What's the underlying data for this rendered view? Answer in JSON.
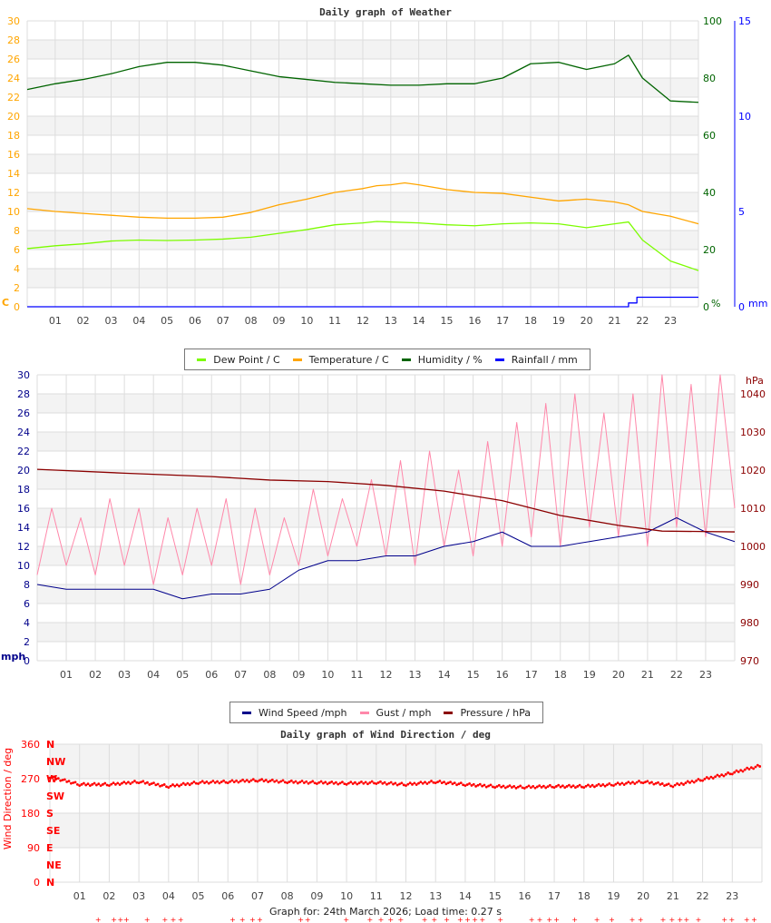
{
  "chart_data": [
    {
      "type": "line",
      "title": "Daily graph of Weather",
      "x_ticks": [
        "01",
        "02",
        "03",
        "04",
        "05",
        "06",
        "07",
        "08",
        "09",
        "10",
        "11",
        "12",
        "13",
        "14",
        "15",
        "16",
        "17",
        "18",
        "19",
        "20",
        "21",
        "22",
        "23"
      ],
      "xlim": [
        0,
        24
      ],
      "grid": true,
      "axes": {
        "left": {
          "unit": "C",
          "range": [
            0,
            30
          ],
          "ticks": [
            0,
            2,
            4,
            6,
            8,
            10,
            12,
            14,
            16,
            18,
            20,
            22,
            24,
            26,
            28,
            30
          ],
          "color": "#ffa500"
        },
        "right": {
          "unit": "%",
          "range": [
            0,
            100
          ],
          "ticks": [
            0,
            20,
            40,
            60,
            80,
            100
          ],
          "color": "#006400"
        },
        "rain": {
          "unit": "mm",
          "range": [
            0,
            15
          ],
          "ticks": [
            0,
            5,
            10,
            15
          ],
          "color": "#0000ff"
        }
      },
      "legend_position": "bottom",
      "series": [
        {
          "name": "Dew Point / C",
          "color": "#7cfc00",
          "axis": "left",
          "points": [
            [
              0,
              6.1
            ],
            [
              1,
              6.4
            ],
            [
              2,
              6.6
            ],
            [
              3,
              6.9
            ],
            [
              4,
              7.0
            ],
            [
              5,
              6.95
            ],
            [
              6,
              7.0
            ],
            [
              7,
              7.1
            ],
            [
              8,
              7.3
            ],
            [
              9,
              7.7
            ],
            [
              10,
              8.1
            ],
            [
              11,
              8.6
            ],
            [
              12,
              8.8
            ],
            [
              12.5,
              8.95
            ],
            [
              13,
              8.9
            ],
            [
              14,
              8.8
            ],
            [
              15,
              8.6
            ],
            [
              16,
              8.5
            ],
            [
              17,
              8.7
            ],
            [
              18,
              8.8
            ],
            [
              19,
              8.7
            ],
            [
              20,
              8.3
            ],
            [
              21,
              8.7
            ],
            [
              21.5,
              8.9
            ],
            [
              22,
              7.0
            ],
            [
              23,
              4.8
            ],
            [
              24,
              3.8
            ]
          ]
        },
        {
          "name": "Temperature / C",
          "color": "#ffa500",
          "axis": "left",
          "points": [
            [
              0,
              10.3
            ],
            [
              1,
              10.0
            ],
            [
              2,
              9.8
            ],
            [
              3,
              9.6
            ],
            [
              4,
              9.4
            ],
            [
              5,
              9.3
            ],
            [
              6,
              9.3
            ],
            [
              7,
              9.4
            ],
            [
              8,
              9.9
            ],
            [
              9,
              10.7
            ],
            [
              10,
              11.3
            ],
            [
              11,
              12.0
            ],
            [
              12,
              12.4
            ],
            [
              12.5,
              12.7
            ],
            [
              13,
              12.8
            ],
            [
              13.5,
              13.0
            ],
            [
              14,
              12.8
            ],
            [
              15,
              12.3
            ],
            [
              16,
              12.0
            ],
            [
              17,
              11.9
            ],
            [
              18,
              11.5
            ],
            [
              19,
              11.1
            ],
            [
              20,
              11.3
            ],
            [
              21,
              11.0
            ],
            [
              21.5,
              10.7
            ],
            [
              22,
              10.0
            ],
            [
              23,
              9.5
            ],
            [
              24,
              8.7
            ]
          ]
        },
        {
          "name": "Humidity / %",
          "color": "#006400",
          "axis": "right",
          "points": [
            [
              0,
              76
            ],
            [
              1,
              78
            ],
            [
              2,
              79.5
            ],
            [
              3,
              81.5
            ],
            [
              4,
              84
            ],
            [
              5,
              85.5
            ],
            [
              6,
              85.5
            ],
            [
              7,
              84.5
            ],
            [
              8,
              82.5
            ],
            [
              9,
              80.5
            ],
            [
              10,
              79.5
            ],
            [
              11,
              78.5
            ],
            [
              12,
              78
            ],
            [
              13,
              77.5
            ],
            [
              14,
              77.5
            ],
            [
              15,
              78
            ],
            [
              16,
              78
            ],
            [
              17,
              80
            ],
            [
              18,
              85
            ],
            [
              19,
              85.5
            ],
            [
              20,
              83
            ],
            [
              21,
              85
            ],
            [
              21.5,
              88
            ],
            [
              22,
              80
            ],
            [
              23,
              72
            ],
            [
              24,
              71.5
            ]
          ]
        },
        {
          "name": "Rainfall / mm",
          "color": "#0000ff",
          "axis": "rain",
          "points": [
            [
              0,
              0
            ],
            [
              21.5,
              0
            ],
            [
              21.5,
              0.2
            ],
            [
              21.8,
              0.2
            ],
            [
              21.8,
              0.5
            ],
            [
              24,
              0.5
            ]
          ]
        }
      ]
    },
    {
      "type": "line",
      "title": "",
      "x_ticks": [
        "01",
        "02",
        "03",
        "04",
        "05",
        "06",
        "07",
        "08",
        "09",
        "10",
        "11",
        "12",
        "13",
        "14",
        "15",
        "16",
        "17",
        "18",
        "19",
        "20",
        "21",
        "22",
        "23"
      ],
      "xlim": [
        0,
        24
      ],
      "grid": true,
      "axes": {
        "left": {
          "unit": "mph",
          "range": [
            0,
            30
          ],
          "ticks": [
            0,
            2,
            4,
            6,
            8,
            10,
            12,
            14,
            16,
            18,
            20,
            22,
            24,
            26,
            28,
            30
          ],
          "color": "#00008b"
        },
        "right": {
          "unit": "hPa",
          "range": [
            970,
            1045
          ],
          "ticks": [
            970,
            980,
            990,
            1000,
            1010,
            1020,
            1030,
            1040
          ],
          "color": "#8b0000"
        }
      },
      "legend_position": "bottom",
      "series": [
        {
          "name": "Gust / mph",
          "color": "#ff88aa",
          "axis": "left",
          "x_step": 0.5,
          "values": [
            9,
            16,
            10,
            15,
            9,
            17,
            10,
            16,
            8,
            15,
            9,
            16,
            10,
            17,
            8,
            16,
            9,
            15,
            10,
            18,
            11,
            17,
            12,
            19,
            11,
            21,
            10,
            22,
            12,
            20,
            11,
            23,
            12,
            25,
            13,
            27,
            12,
            28,
            14,
            26,
            13,
            28,
            12,
            30,
            14,
            29,
            13,
            30,
            16
          ]
        },
        {
          "name": "Wind Speed /mph",
          "color": "#00008b",
          "axis": "left",
          "x_step": 1,
          "values": [
            8,
            7.5,
            7.5,
            7.5,
            7.5,
            6.5,
            7,
            7,
            7.5,
            9.5,
            10.5,
            10.5,
            11,
            11,
            12,
            12.5,
            13.5,
            12,
            12,
            12.5,
            13,
            13.5,
            15,
            13.5,
            12.5
          ]
        },
        {
          "name": "Pressure / hPa",
          "color": "#8b0000",
          "axis": "right",
          "points": [
            [
              0,
              1020.2
            ],
            [
              3,
              1019.2
            ],
            [
              6,
              1018.3
            ],
            [
              8,
              1017.4
            ],
            [
              10,
              1017
            ],
            [
              12,
              1016
            ],
            [
              14,
              1014.5
            ],
            [
              16,
              1012
            ],
            [
              18,
              1008.1
            ],
            [
              20,
              1005.5
            ],
            [
              21.5,
              1004
            ],
            [
              24,
              1003.8
            ]
          ]
        }
      ]
    },
    {
      "type": "scatter",
      "title": "Daily graph of Wind Direction / deg",
      "ylabel": "Wind Direction / deg",
      "x_ticks": [
        "01",
        "02",
        "03",
        "04",
        "05",
        "06",
        "07",
        "08",
        "09",
        "10",
        "11",
        "12",
        "13",
        "14",
        "15",
        "16",
        "17",
        "18",
        "19",
        "20",
        "21",
        "22",
        "23"
      ],
      "xlim": [
        0,
        24
      ],
      "ylim": [
        0,
        360
      ],
      "y_ticks": [
        0,
        90,
        180,
        270,
        360
      ],
      "compass_labels": [
        "N",
        "NE",
        "E",
        "SE",
        "S",
        "SW",
        "W",
        "NW",
        "N"
      ],
      "grid": true,
      "color": "#ff0000",
      "series": [
        {
          "color": "#ff0000",
          "x_step": 1,
          "values": [
            275,
            255,
            255,
            262,
            250,
            260,
            262,
            266,
            262,
            260,
            258,
            260,
            255,
            262,
            255,
            250,
            248,
            250,
            250,
            255,
            262,
            252,
            268,
            285,
            305
          ]
        }
      ],
      "marker_hours": [
        1.72,
        2.25,
        2.47,
        2.67,
        3.37,
        3.97,
        4.25,
        4.5,
        6.25,
        6.58,
        6.92,
        7.17,
        8.55,
        8.78,
        10.08,
        10.88,
        11.25,
        11.58,
        11.92,
        12.72,
        13.05,
        13.47,
        13.92,
        14.17,
        14.42,
        14.67,
        15.28,
        16.33,
        16.6,
        16.93,
        17.17,
        17.78,
        18.53,
        19.03,
        19.72,
        20.0,
        20.76,
        21.06,
        21.33,
        21.55,
        21.95,
        22.83,
        23.08,
        23.58,
        23.83
      ]
    }
  ],
  "footer": "Graph for: 24th March 2026; Load time: 0.27 s"
}
